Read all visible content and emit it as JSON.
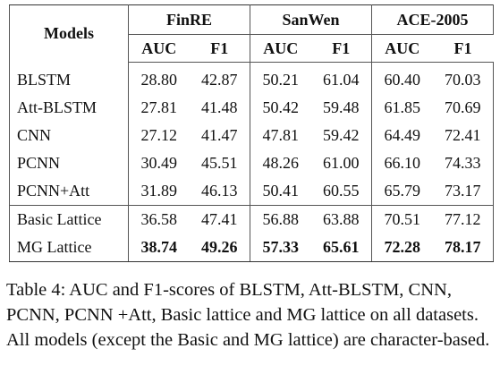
{
  "table": {
    "models_header": "Models",
    "groups": [
      "FinRE",
      "SanWen",
      "ACE-2005"
    ],
    "metrics": [
      "AUC",
      "F1",
      "AUC",
      "F1",
      "AUC",
      "F1"
    ],
    "rows": [
      [
        "BLSTM",
        "28.80",
        "42.87",
        "50.21",
        "61.04",
        "60.40",
        "70.03"
      ],
      [
        "Att-BLSTM",
        "27.81",
        "41.48",
        "50.42",
        "59.48",
        "61.85",
        "70.69"
      ],
      [
        "CNN",
        "27.12",
        "41.47",
        "47.81",
        "59.42",
        "64.49",
        "72.41"
      ],
      [
        "PCNN",
        "30.49",
        "45.51",
        "48.26",
        "61.00",
        "66.10",
        "74.33"
      ],
      [
        "PCNN+Att",
        "31.89",
        "46.13",
        "50.41",
        "60.55",
        "65.79",
        "73.17"
      ],
      [
        "Basic Lattice",
        "36.58",
        "47.41",
        "56.88",
        "63.88",
        "70.51",
        "77.12"
      ],
      [
        "MG Lattice",
        "38.74",
        "49.26",
        "57.33",
        "65.61",
        "72.28",
        "78.17"
      ]
    ]
  },
  "caption": "Table 4: AUC and F1-scores of BLSTM, Att-BLSTM, CNN, PCNN, PCNN +Att, Basic lattice and MG lattice on all datasets. All models (except the Basic and MG lattice) are character-based."
}
